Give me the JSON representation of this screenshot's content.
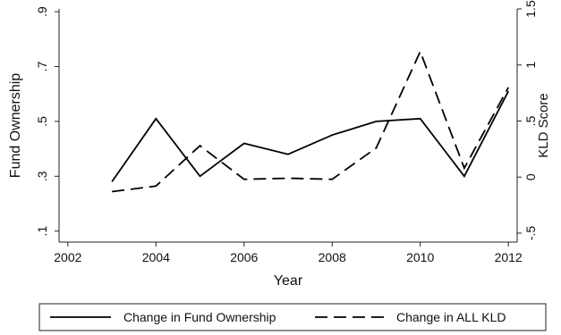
{
  "chart_data": {
    "type": "line",
    "title": "",
    "xlabel": "Year",
    "ylabel_left": "Fund Ownership",
    "ylabel_right": "KLD Score",
    "x_ticks": [
      "2002",
      "2004",
      "2006",
      "2008",
      "2010",
      "2012"
    ],
    "x_tick_values": [
      2002,
      2004,
      2006,
      2008,
      2010,
      2012
    ],
    "xlim": [
      2001.8,
      2012.2
    ],
    "y_left_ticks": [
      ".1",
      ".3",
      ".5",
      ".7",
      ".9"
    ],
    "y_left_tick_values": [
      0.1,
      0.3,
      0.5,
      0.7,
      0.9
    ],
    "y_left_lim": [
      0.06,
      0.91
    ],
    "y_right_ticks": [
      "-.5",
      "0",
      ".5",
      "1",
      "1.5"
    ],
    "y_right_tick_values": [
      -0.5,
      0,
      0.5,
      1,
      1.5
    ],
    "y_right_lim": [
      -0.58,
      1.5
    ],
    "grid": false,
    "legend_position": "bottom",
    "x": [
      2003,
      2004,
      2005,
      2006,
      2007,
      2008,
      2009,
      2010,
      2011,
      2012
    ],
    "series": [
      {
        "name": "Change in Fund Ownership",
        "axis": "left",
        "style": "solid",
        "color": "#000000",
        "values": [
          0.28,
          0.51,
          0.3,
          0.42,
          0.38,
          0.45,
          0.5,
          0.51,
          0.3,
          0.61
        ]
      },
      {
        "name": "Change in ALL KLD",
        "axis": "right",
        "style": "dashed",
        "color": "#000000",
        "values": [
          -0.13,
          -0.08,
          0.28,
          -0.02,
          -0.01,
          -0.02,
          0.26,
          1.12,
          0.08,
          0.8
        ]
      }
    ]
  }
}
